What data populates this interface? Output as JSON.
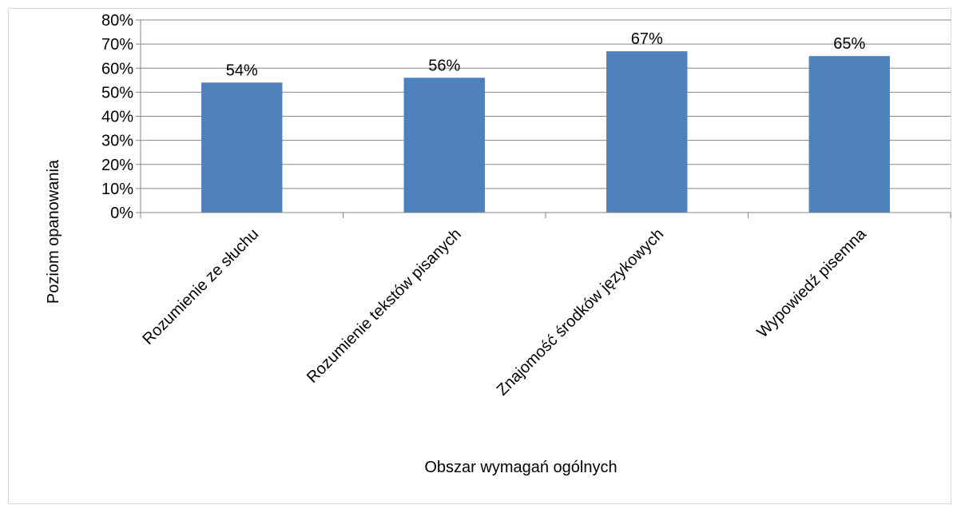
{
  "chart_data": {
    "type": "bar",
    "title": "",
    "xlabel": "Obszar wymagań ogólnych",
    "ylabel": "Poziom opanowania",
    "categories": [
      "Rozumienie ze słuchu",
      "Rozumienie tekstów pisanych",
      "Znajomość środków językowych",
      "Wypowiedź pisemna"
    ],
    "values": [
      54,
      56,
      67,
      65
    ],
    "data_labels": [
      "54%",
      "56%",
      "67%",
      "65%"
    ],
    "ylim": [
      0,
      80
    ],
    "yticks": [
      0,
      10,
      20,
      30,
      40,
      50,
      60,
      70,
      80
    ],
    "ytick_labels": [
      "0%",
      "10%",
      "20%",
      "30%",
      "40%",
      "50%",
      "60%",
      "70%",
      "80%"
    ],
    "grid": true,
    "legend": "none",
    "bar_color": "#4f81bd",
    "grid_color": "#878787"
  }
}
